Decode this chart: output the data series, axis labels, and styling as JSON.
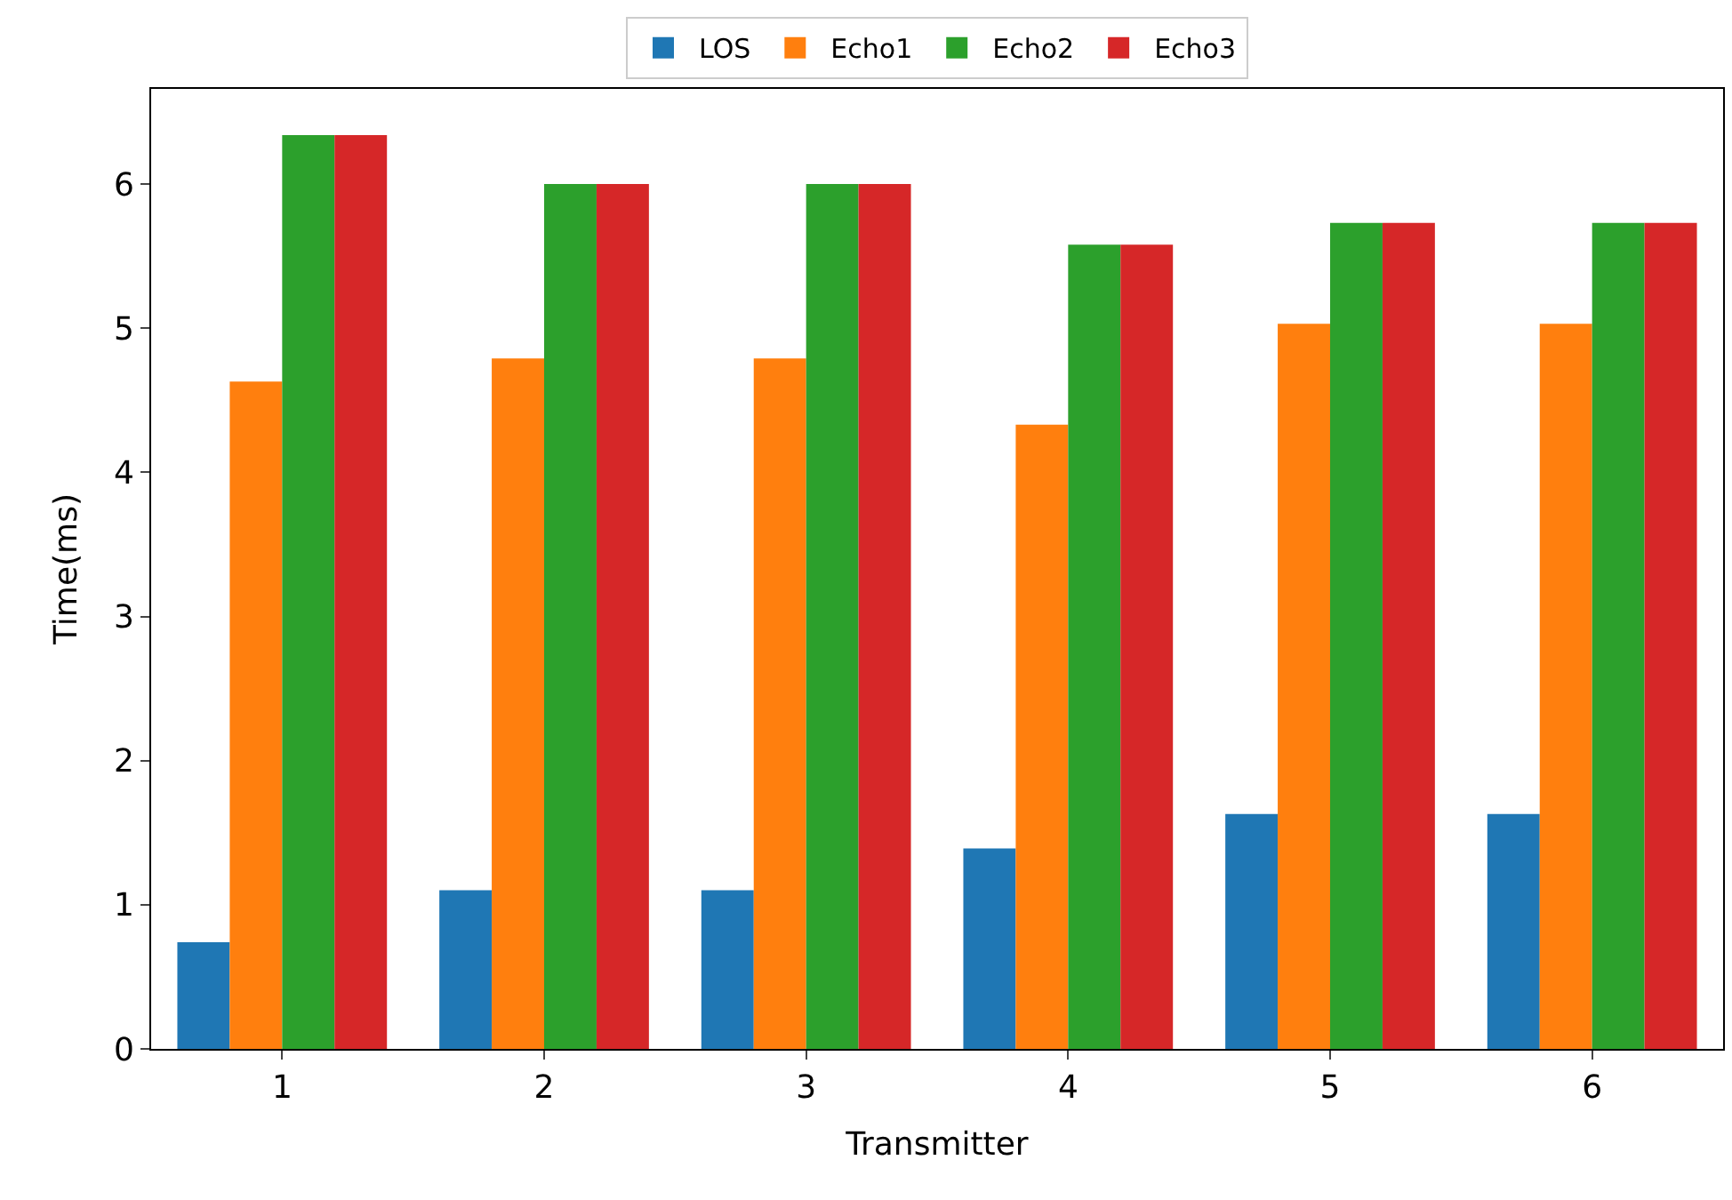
{
  "chart_data": {
    "type": "bar",
    "xlabel": "Transmitter",
    "ylabel": "Time(ms)",
    "categories": [
      "1",
      "2",
      "3",
      "4",
      "5",
      "6"
    ],
    "series": [
      {
        "name": "LOS",
        "color": "#1f77b4",
        "values": [
          0.74,
          1.1,
          1.1,
          1.39,
          1.63,
          1.63
        ]
      },
      {
        "name": "Echo1",
        "color": "#ff7f0e",
        "values": [
          4.63,
          4.79,
          4.79,
          4.33,
          5.03,
          5.03
        ]
      },
      {
        "name": "Echo2",
        "color": "#2ca02c",
        "values": [
          6.34,
          6.0,
          6.0,
          5.58,
          5.73,
          5.73
        ]
      },
      {
        "name": "Echo3",
        "color": "#d62728",
        "values": [
          6.34,
          6.0,
          6.0,
          5.58,
          5.73,
          5.73
        ]
      }
    ],
    "ylim": [
      0,
      6.66
    ],
    "yticks": [
      0,
      1,
      2,
      3,
      4,
      5,
      6
    ],
    "grid": false,
    "legend": "top"
  }
}
